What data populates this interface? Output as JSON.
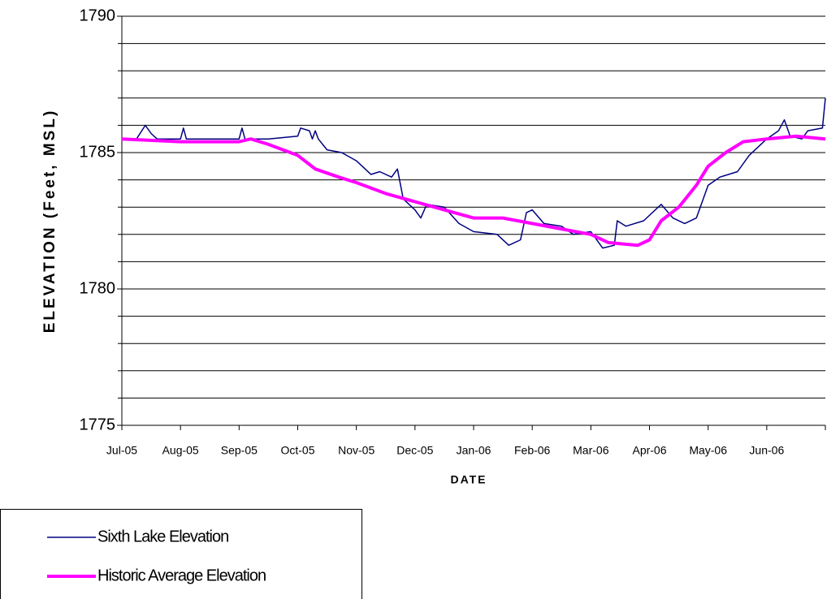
{
  "chart_data": {
    "type": "line",
    "xlabel": "DATE",
    "ylabel": "ELEVATION (Feet, MSL)",
    "xlim": [
      0,
      12
    ],
    "xticks": [
      {
        "value": 0,
        "label": "Jul-05"
      },
      {
        "value": 1,
        "label": "Aug-05"
      },
      {
        "value": 2,
        "label": "Sep-05"
      },
      {
        "value": 3,
        "label": "Oct-05"
      },
      {
        "value": 4,
        "label": "Nov-05"
      },
      {
        "value": 5,
        "label": "Dec-05"
      },
      {
        "value": 6,
        "label": "Jan-06"
      },
      {
        "value": 7,
        "label": "Feb-06"
      },
      {
        "value": 8,
        "label": "Mar-06"
      },
      {
        "value": 9,
        "label": "Apr-06"
      },
      {
        "value": 10,
        "label": "May-06"
      },
      {
        "value": 11,
        "label": "Jun-06"
      }
    ],
    "ylim": [
      1775,
      1790
    ],
    "yticks": [
      1775,
      1780,
      1785,
      1790
    ],
    "yminor": [
      1776,
      1777,
      1778,
      1779,
      1781,
      1782,
      1783,
      1784,
      1786,
      1787,
      1788,
      1789
    ],
    "grid": true,
    "legend": "bottom-left",
    "series": [
      {
        "name": "Sixth Lake Elevation",
        "color": "#000080",
        "width": 1.5,
        "x": [
          0,
          0.25,
          0.4,
          0.5,
          0.6,
          0.75,
          1,
          1.05,
          1.1,
          1.5,
          2,
          2.05,
          2.1,
          2.5,
          3,
          3.05,
          3.2,
          3.25,
          3.3,
          3.35,
          3.5,
          3.75,
          4,
          4.25,
          4.4,
          4.6,
          4.7,
          4.8,
          5,
          5.1,
          5.2,
          5.5,
          5.75,
          6,
          6.4,
          6.6,
          6.8,
          6.9,
          7,
          7.2,
          7.5,
          7.7,
          8,
          8.2,
          8.4,
          8.45,
          8.6,
          8.9,
          9.2,
          9.4,
          9.6,
          9.8,
          10,
          10.2,
          10.5,
          10.7,
          11,
          11.2,
          11.3,
          11.4,
          11.6,
          11.7,
          11.95,
          12
        ],
        "values": [
          1785.5,
          1785.5,
          1786.0,
          1785.7,
          1785.5,
          1785.5,
          1785.5,
          1785.9,
          1785.5,
          1785.5,
          1785.5,
          1785.9,
          1785.5,
          1785.5,
          1785.6,
          1785.9,
          1785.8,
          1785.5,
          1785.8,
          1785.5,
          1785.1,
          1785.0,
          1784.7,
          1784.2,
          1784.3,
          1784.1,
          1784.4,
          1783.3,
          1782.9,
          1782.6,
          1783.1,
          1783.0,
          1782.4,
          1782.1,
          1782.0,
          1781.6,
          1781.8,
          1782.8,
          1782.9,
          1782.4,
          1782.3,
          1782.0,
          1782.1,
          1781.5,
          1781.6,
          1782.5,
          1782.3,
          1782.5,
          1783.1,
          1782.6,
          1782.4,
          1782.6,
          1783.8,
          1784.1,
          1784.3,
          1784.9,
          1785.5,
          1785.8,
          1786.2,
          1785.6,
          1785.5,
          1785.8,
          1785.9,
          1787.0
        ]
      },
      {
        "name": "Historic Average Elevation",
        "color": "#ff00ff",
        "width": 4,
        "x": [
          0,
          1,
          2,
          2.2,
          2.5,
          3,
          3.3,
          3.7,
          4,
          4.5,
          5,
          5.5,
          6,
          6.5,
          7,
          7.5,
          8,
          8.3,
          8.8,
          9,
          9.2,
          9.5,
          9.8,
          10,
          10.3,
          10.6,
          11,
          11.5,
          12
        ],
        "values": [
          1785.5,
          1785.4,
          1785.4,
          1785.5,
          1785.3,
          1784.9,
          1784.4,
          1784.1,
          1783.9,
          1783.5,
          1783.2,
          1782.9,
          1782.6,
          1782.6,
          1782.4,
          1782.2,
          1782.0,
          1781.7,
          1781.6,
          1781.8,
          1782.5,
          1783.0,
          1783.8,
          1784.5,
          1785.0,
          1785.4,
          1785.5,
          1785.6,
          1785.5
        ]
      }
    ]
  }
}
